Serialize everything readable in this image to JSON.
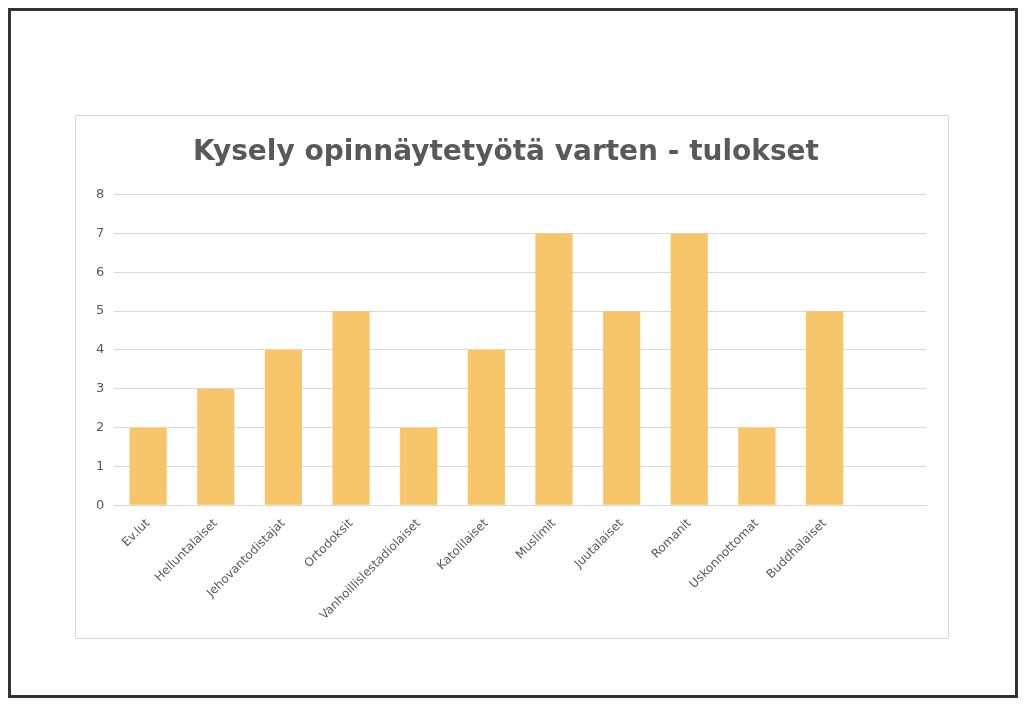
{
  "chart_data": {
    "type": "bar",
    "title": "Kysely opinnäytetyötä varten - tulokset",
    "categories": [
      "Ev.lut",
      "Helluntalaiset",
      "Jehovantodistajat",
      "Ortodoksit",
      "Vanhoillislestadiolaiset",
      "Katolilaiset",
      "Muslimit",
      "Juutalaiset",
      "Romanit",
      "Uskonnottomat",
      "Buddhalaiset",
      null
    ],
    "values": [
      2,
      3,
      4,
      5,
      2,
      4,
      7,
      5,
      7,
      2,
      5,
      null
    ],
    "color": "#f7c66b",
    "ylim": [
      0,
      8
    ],
    "yticks": [
      0,
      1,
      2,
      3,
      4,
      5,
      6,
      7,
      8
    ],
    "grid": "y",
    "legend": false
  }
}
